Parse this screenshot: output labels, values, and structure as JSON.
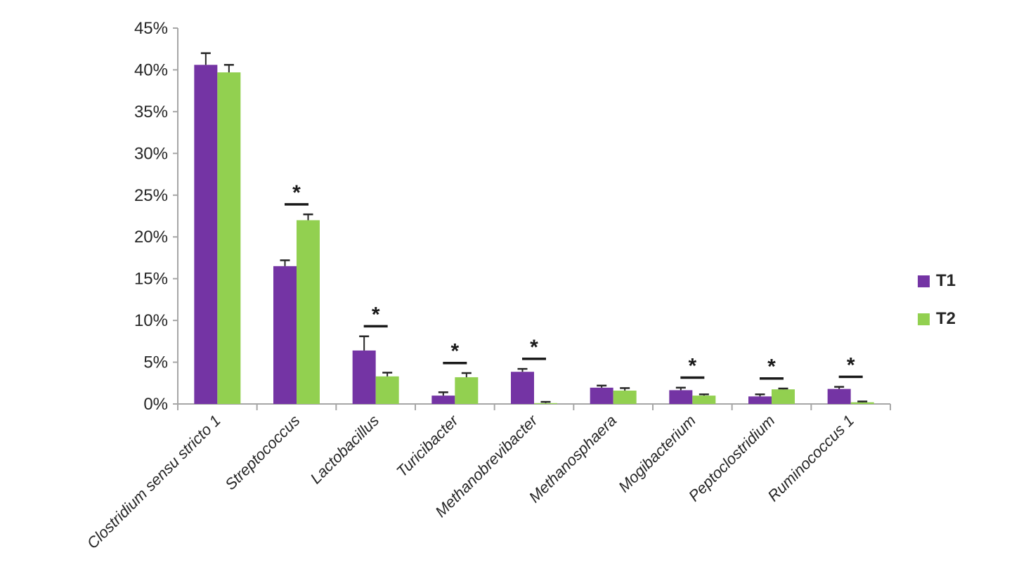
{
  "chart_data": {
    "type": "bar",
    "categories": [
      "Clostridium sensu stricto 1",
      "Streptococcus",
      "Lactobacillus",
      "Turicibacter",
      "Methanobrevibacter",
      "Methanosphaera",
      "Mogibacterium",
      "Peptoclostridium",
      "Ruminococcus 1"
    ],
    "series": [
      {
        "name": "T1",
        "color": "#7434A4",
        "values": [
          40.6,
          16.5,
          6.4,
          1.0,
          3.85,
          1.95,
          1.65,
          0.9,
          1.8
        ],
        "errors": [
          1.4,
          0.7,
          1.7,
          0.4,
          0.35,
          0.25,
          0.3,
          0.25,
          0.25
        ]
      },
      {
        "name": "T2",
        "color": "#92D050",
        "values": [
          39.7,
          22.0,
          3.3,
          3.2,
          0.1,
          1.6,
          1.0,
          1.75,
          0.2
        ],
        "errors": [
          0.9,
          0.7,
          0.45,
          0.5,
          0.15,
          0.3,
          0.15,
          0.1,
          0.1
        ]
      }
    ],
    "significant": [
      false,
      true,
      true,
      true,
      true,
      false,
      true,
      true,
      true
    ],
    "sig_marker": "*",
    "y_ticks": [
      "0%",
      "5%",
      "10%",
      "15%",
      "20%",
      "25%",
      "30%",
      "35%",
      "40%",
      "45%"
    ],
    "ylim": [
      0,
      45
    ],
    "xlabel": "",
    "ylabel": "",
    "grid": false,
    "legend_position": "right",
    "error_bars": true
  },
  "colors": {
    "axis": "#A6A6A6",
    "text": "#262626",
    "error_bar": "#262626",
    "significance": "#1A1A1A",
    "background": "#FFFFFF"
  }
}
